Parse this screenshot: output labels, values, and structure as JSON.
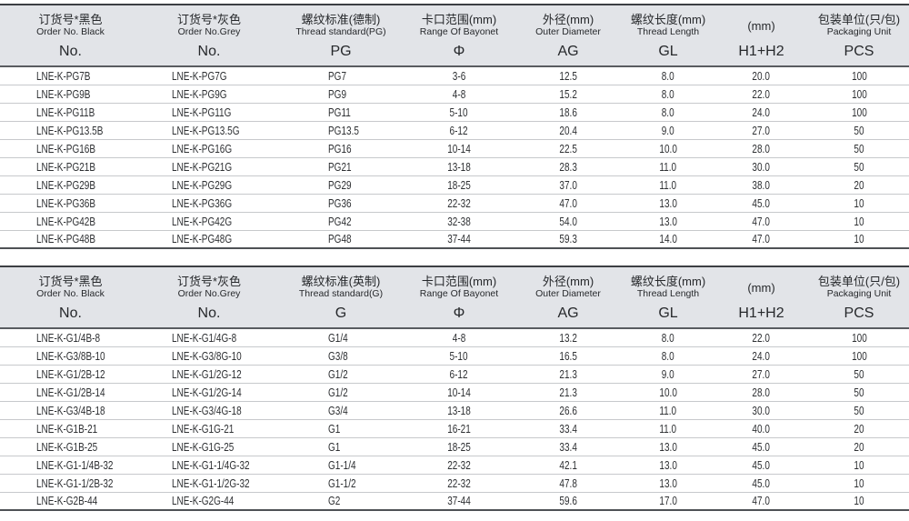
{
  "colors": {
    "header_background": "#e2e4e8",
    "border_dark": "#3c3f43",
    "border_light": "#c7c9cc",
    "text": "#26282b"
  },
  "tables": [
    {
      "name": "pg-thread-table",
      "columns": [
        {
          "key": "order-no-black",
          "cn": "订货号*黑色",
          "en": "Order No. Black",
          "symbol": "No."
        },
        {
          "key": "order-no-grey",
          "cn": "订货号*灰色",
          "en": "Order No.Grey",
          "symbol": "No."
        },
        {
          "key": "thread-standard",
          "cn": "螺纹标准(德制)",
          "en": "Thread standard(PG)",
          "symbol": "PG"
        },
        {
          "key": "bayonet-range",
          "cn": "卡口范围(mm)",
          "en": "Range Of Bayonet",
          "symbol": "Φ"
        },
        {
          "key": "outer-diameter",
          "cn": "外径(mm)",
          "en": "Outer Diameter",
          "symbol": "AG"
        },
        {
          "key": "thread-length",
          "cn": "螺纹长度(mm)",
          "en": "Thread Length",
          "symbol": "GL"
        },
        {
          "key": "h1-h2",
          "cn": "(mm)",
          "en": "",
          "symbol": "H1+H2"
        },
        {
          "key": "packaging-unit",
          "cn": "包装单位(只/包)",
          "en": "Packaging Unit",
          "symbol": "PCS"
        }
      ],
      "rows": [
        [
          "LNE-K-PG7B",
          "LNE-K-PG7G",
          "PG7",
          "3-6",
          "12.5",
          "8.0",
          "20.0",
          "100"
        ],
        [
          "LNE-K-PG9B",
          "LNE-K-PG9G",
          "PG9",
          "4-8",
          "15.2",
          "8.0",
          "22.0",
          "100"
        ],
        [
          "LNE-K-PG11B",
          "LNE-K-PG11G",
          "PG11",
          "5-10",
          "18.6",
          "8.0",
          "24.0",
          "100"
        ],
        [
          "LNE-K-PG13.5B",
          "LNE-K-PG13.5G",
          "PG13.5",
          "6-12",
          "20.4",
          "9.0",
          "27.0",
          "50"
        ],
        [
          "LNE-K-PG16B",
          "LNE-K-PG16G",
          "PG16",
          "10-14",
          "22.5",
          "10.0",
          "28.0",
          "50"
        ],
        [
          "LNE-K-PG21B",
          "LNE-K-PG21G",
          "PG21",
          "13-18",
          "28.3",
          "11.0",
          "30.0",
          "50"
        ],
        [
          "LNE-K-PG29B",
          "LNE-K-PG29G",
          "PG29",
          "18-25",
          "37.0",
          "11.0",
          "38.0",
          "20"
        ],
        [
          "LNE-K-PG36B",
          "LNE-K-PG36G",
          "PG36",
          "22-32",
          "47.0",
          "13.0",
          "45.0",
          "10"
        ],
        [
          "LNE-K-PG42B",
          "LNE-K-PG42G",
          "PG42",
          "32-38",
          "54.0",
          "13.0",
          "47.0",
          "10"
        ],
        [
          "LNE-K-PG48B",
          "LNE-K-PG48G",
          "PG48",
          "37-44",
          "59.3",
          "14.0",
          "47.0",
          "10"
        ]
      ]
    },
    {
      "name": "g-thread-table",
      "columns": [
        {
          "key": "order-no-black",
          "cn": "订货号*黑色",
          "en": "Order No. Black",
          "symbol": "No."
        },
        {
          "key": "order-no-grey",
          "cn": "订货号*灰色",
          "en": "Order No.Grey",
          "symbol": "No."
        },
        {
          "key": "thread-standard",
          "cn": "螺纹标准(英制)",
          "en": "Thread standard(G)",
          "symbol": "G"
        },
        {
          "key": "bayonet-range",
          "cn": "卡口范围(mm)",
          "en": "Range Of Bayonet",
          "symbol": "Φ"
        },
        {
          "key": "outer-diameter",
          "cn": "外径(mm)",
          "en": "Outer Diameter",
          "symbol": "AG"
        },
        {
          "key": "thread-length",
          "cn": "螺纹长度(mm)",
          "en": "Thread Length",
          "symbol": "GL"
        },
        {
          "key": "h1-h2",
          "cn": "(mm)",
          "en": "",
          "symbol": "H1+H2"
        },
        {
          "key": "packaging-unit",
          "cn": "包装单位(只/包)",
          "en": "Packaging Unit",
          "symbol": "PCS"
        }
      ],
      "rows": [
        [
          "LNE-K-G1/4B-8",
          "LNE-K-G1/4G-8",
          "G1/4",
          "4-8",
          "13.2",
          "8.0",
          "22.0",
          "100"
        ],
        [
          "LNE-K-G3/8B-10",
          "LNE-K-G3/8G-10",
          "G3/8",
          "5-10",
          "16.5",
          "8.0",
          "24.0",
          "100"
        ],
        [
          "LNE-K-G1/2B-12",
          "LNE-K-G1/2G-12",
          "G1/2",
          "6-12",
          "21.3",
          "9.0",
          "27.0",
          "50"
        ],
        [
          "LNE-K-G1/2B-14",
          "LNE-K-G1/2G-14",
          "G1/2",
          "10-14",
          "21.3",
          "10.0",
          "28.0",
          "50"
        ],
        [
          "LNE-K-G3/4B-18",
          "LNE-K-G3/4G-18",
          "G3/4",
          "13-18",
          "26.6",
          "11.0",
          "30.0",
          "50"
        ],
        [
          "LNE-K-G1B-21",
          "LNE-K-G1G-21",
          "G1",
          "16-21",
          "33.4",
          "11.0",
          "40.0",
          "20"
        ],
        [
          "LNE-K-G1B-25",
          "LNE-K-G1G-25",
          "G1",
          "18-25",
          "33.4",
          "13.0",
          "45.0",
          "20"
        ],
        [
          "LNE-K-G1-1/4B-32",
          "LNE-K-G1-1/4G-32",
          "G1-1/4",
          "22-32",
          "42.1",
          "13.0",
          "45.0",
          "10"
        ],
        [
          "LNE-K-G1-1/2B-32",
          "LNE-K-G1-1/2G-32",
          "G1-1/2",
          "22-32",
          "47.8",
          "13.0",
          "45.0",
          "10"
        ],
        [
          "LNE-K-G2B-44",
          "LNE-K-G2G-44",
          "G2",
          "37-44",
          "59.6",
          "17.0",
          "47.0",
          "10"
        ]
      ]
    }
  ]
}
